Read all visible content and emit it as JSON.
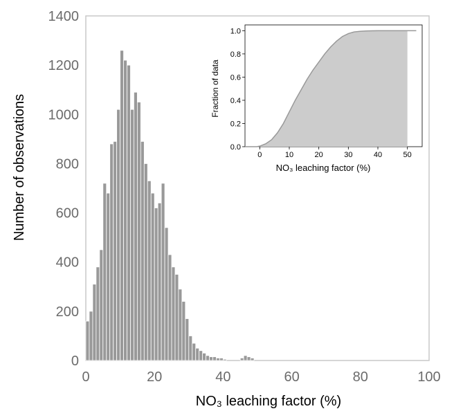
{
  "chart_data": [
    {
      "type": "bar",
      "xlabel": "NO₃ leaching factor (%)",
      "ylabel": "Number of  observations",
      "xlim": [
        0,
        100
      ],
      "ylim": [
        0,
        1400
      ],
      "x_ticks": [
        "0",
        "20",
        "40",
        "60",
        "80",
        "100"
      ],
      "y_ticks": [
        "0",
        "200",
        "400",
        "600",
        "800",
        "1000",
        "1200",
        "1400"
      ],
      "bin_width": 1,
      "bin_starts": [
        0,
        1,
        2,
        3,
        4,
        5,
        6,
        7,
        8,
        9,
        10,
        11,
        12,
        13,
        14,
        15,
        16,
        17,
        18,
        19,
        20,
        21,
        22,
        23,
        24,
        25,
        26,
        27,
        28,
        29,
        30,
        31,
        32,
        33,
        34,
        35,
        36,
        37,
        38,
        39,
        40,
        41,
        42,
        43,
        44,
        45,
        46,
        47,
        48,
        49
      ],
      "values": [
        160,
        200,
        310,
        380,
        450,
        720,
        680,
        880,
        890,
        1020,
        1260,
        1220,
        1200,
        1020,
        1090,
        1050,
        890,
        800,
        730,
        680,
        620,
        640,
        720,
        540,
        430,
        380,
        350,
        290,
        240,
        170,
        100,
        70,
        50,
        40,
        30,
        20,
        15,
        15,
        10,
        10,
        5,
        0,
        0,
        0,
        0,
        10,
        20,
        15,
        10,
        0
      ],
      "color": "#999999"
    },
    {
      "type": "area",
      "subtype": "cumulative-distribution",
      "xlabel": "NO₃ leaching factor (%)",
      "ylabel": "Fraction of data",
      "xlim": [
        -5,
        55
      ],
      "ylim": [
        0,
        1.05
      ],
      "x_ticks": [
        "0",
        "10",
        "20",
        "30",
        "40",
        "50"
      ],
      "y_ticks": [
        "0.0",
        "0.2",
        "0.4",
        "0.6",
        "0.8",
        "1.0"
      ],
      "x": [
        -5,
        -3,
        -1,
        0,
        2,
        4,
        6,
        8,
        10,
        12,
        14,
        16,
        18,
        20,
        22,
        24,
        26,
        28,
        30,
        32,
        34,
        36,
        38,
        40,
        45,
        50,
        53
      ],
      "y": [
        0,
        0,
        0,
        0.005,
        0.025,
        0.06,
        0.12,
        0.2,
        0.3,
        0.4,
        0.49,
        0.58,
        0.66,
        0.73,
        0.8,
        0.86,
        0.91,
        0.95,
        0.975,
        0.99,
        0.995,
        0.998,
        0.999,
        1.0,
        1.0,
        1.0,
        1.0
      ],
      "fill_color": "#cccccc",
      "line_color": "#999999"
    }
  ]
}
